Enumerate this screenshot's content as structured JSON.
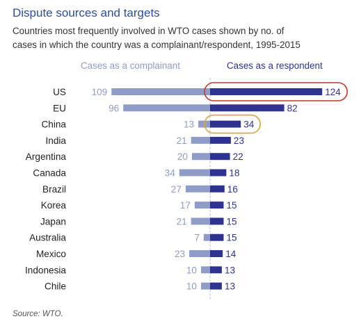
{
  "chart_data": {
    "type": "bar",
    "title": "Dispute sources and targets",
    "subtitle_lines": [
      "Countries most frequently involved in WTO cases shown by no. of",
      "cases in which the country was a complainant/respondent, 1995-2015"
    ],
    "categories": [
      "US",
      "EU",
      "China",
      "India",
      "Argentina",
      "Canada",
      "Brazil",
      "Korea",
      "Japan",
      "Australia",
      "Mexico",
      "Indonesia",
      "Chile"
    ],
    "series": [
      {
        "name": "Cases as a complainant",
        "values": [
          109,
          96,
          13,
          21,
          20,
          34,
          27,
          17,
          21,
          7,
          23,
          10,
          10
        ],
        "color": "#8f9cc8"
      },
      {
        "name": "Cases as a respondent",
        "values": [
          124,
          82,
          34,
          23,
          22,
          18,
          16,
          15,
          15,
          15,
          14,
          13,
          13
        ],
        "color": "#2e3392"
      }
    ],
    "highlighted": [
      {
        "category": "US",
        "series": "Cases as a respondent",
        "color": "#c0392b"
      },
      {
        "category": "China",
        "series": "Cases as a respondent",
        "color": "#d9a441"
      }
    ],
    "source": "Source: WTO."
  }
}
